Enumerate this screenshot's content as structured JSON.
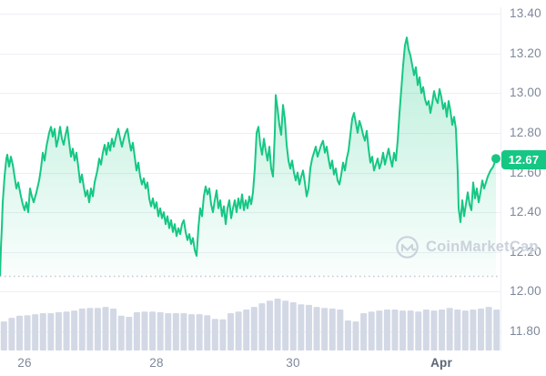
{
  "watermark": {
    "text": "CoinMarketCap",
    "logo_icon": "coinmarketcap-logo"
  },
  "chart_data": {
    "type": "area",
    "title": "",
    "current_price": "12.67",
    "legend": [],
    "y_axis": {
      "side": "right",
      "grid": true,
      "ticks": [
        "13.40",
        "13.20",
        "13.00",
        "12.80",
        "12.60",
        "12.40",
        "12.20",
        "12.00",
        "11.80"
      ],
      "range_top": 13.4,
      "range_bottom": 11.8
    },
    "x_axis": {
      "ticks": [
        {
          "label": "26",
          "t": 0.049,
          "bold": false
        },
        {
          "label": "28",
          "t": 0.313,
          "bold": false
        },
        {
          "label": "30",
          "t": 0.585,
          "bold": false
        },
        {
          "label": "Apr",
          "t": 0.882,
          "bold": true
        }
      ]
    },
    "series": [
      {
        "name": "price",
        "points": [
          [
            0,
            12.07
          ],
          [
            1,
            12.22
          ],
          [
            2,
            12.32
          ],
          [
            3,
            12.45
          ],
          [
            5,
            12.58
          ],
          [
            7,
            12.67
          ],
          [
            8,
            12.69
          ],
          [
            10,
            12.63
          ],
          [
            12,
            12.68
          ],
          [
            14,
            12.64
          ],
          [
            16,
            12.58
          ],
          [
            18,
            12.52
          ],
          [
            20,
            12.55
          ],
          [
            23,
            12.48
          ],
          [
            25,
            12.44
          ],
          [
            27,
            12.41
          ],
          [
            29,
            12.45
          ],
          [
            31,
            12.4
          ],
          [
            33,
            12.52
          ],
          [
            35,
            12.48
          ],
          [
            37,
            12.45
          ],
          [
            40,
            12.5
          ],
          [
            43,
            12.56
          ],
          [
            45,
            12.62
          ],
          [
            47,
            12.7
          ],
          [
            49,
            12.66
          ],
          [
            51,
            12.73
          ],
          [
            54,
            12.8
          ],
          [
            56,
            12.83
          ],
          [
            58,
            12.78
          ],
          [
            60,
            12.82
          ],
          [
            62,
            12.73
          ],
          [
            64,
            12.77
          ],
          [
            66,
            12.83
          ],
          [
            68,
            12.77
          ],
          [
            70,
            12.74
          ],
          [
            72,
            12.79
          ],
          [
            74,
            12.83
          ],
          [
            76,
            12.75
          ],
          [
            78,
            12.68
          ],
          [
            80,
            12.72
          ],
          [
            82,
            12.66
          ],
          [
            84,
            12.7
          ],
          [
            86,
            12.63
          ],
          [
            88,
            12.55
          ],
          [
            90,
            12.59
          ],
          [
            92,
            12.53
          ],
          [
            94,
            12.48
          ],
          [
            96,
            12.51
          ],
          [
            98,
            12.45
          ],
          [
            100,
            12.52
          ],
          [
            102,
            12.48
          ],
          [
            104,
            12.55
          ],
          [
            107,
            12.61
          ],
          [
            109,
            12.67
          ],
          [
            111,
            12.64
          ],
          [
            113,
            12.7
          ],
          [
            115,
            12.74
          ],
          [
            117,
            12.69
          ],
          [
            119,
            12.75
          ],
          [
            121,
            12.71
          ],
          [
            123,
            12.77
          ],
          [
            125,
            12.73
          ],
          [
            128,
            12.79
          ],
          [
            130,
            12.82
          ],
          [
            132,
            12.77
          ],
          [
            134,
            12.73
          ],
          [
            136,
            12.77
          ],
          [
            138,
            12.8
          ],
          [
            140,
            12.82
          ],
          [
            142,
            12.76
          ],
          [
            144,
            12.71
          ],
          [
            146,
            12.75
          ],
          [
            148,
            12.68
          ],
          [
            150,
            12.61
          ],
          [
            152,
            12.65
          ],
          [
            154,
            12.58
          ],
          [
            156,
            12.54
          ],
          [
            158,
            12.57
          ],
          [
            160,
            12.52
          ],
          [
            162,
            12.55
          ],
          [
            164,
            12.47
          ],
          [
            166,
            12.43
          ],
          [
            168,
            12.47
          ],
          [
            170,
            12.42
          ],
          [
            172,
            12.45
          ],
          [
            174,
            12.38
          ],
          [
            176,
            12.42
          ],
          [
            178,
            12.37
          ],
          [
            180,
            12.4
          ],
          [
            182,
            12.34
          ],
          [
            184,
            12.38
          ],
          [
            186,
            12.32
          ],
          [
            188,
            12.36
          ],
          [
            190,
            12.3
          ],
          [
            192,
            12.34
          ],
          [
            194,
            12.28
          ],
          [
            196,
            12.32
          ],
          [
            198,
            12.29
          ],
          [
            200,
            12.34
          ],
          [
            202,
            12.36
          ],
          [
            204,
            12.3
          ],
          [
            206,
            12.26
          ],
          [
            208,
            12.29
          ],
          [
            210,
            12.24
          ],
          [
            212,
            12.27
          ],
          [
            214,
            12.21
          ],
          [
            216,
            12.18
          ],
          [
            218,
            12.32
          ],
          [
            220,
            12.42
          ],
          [
            222,
            12.38
          ],
          [
            224,
            12.48
          ],
          [
            226,
            12.53
          ],
          [
            228,
            12.49
          ],
          [
            230,
            12.52
          ],
          [
            232,
            12.44
          ],
          [
            234,
            12.4
          ],
          [
            236,
            12.46
          ],
          [
            238,
            12.51
          ],
          [
            240,
            12.42
          ],
          [
            242,
            12.46
          ],
          [
            244,
            12.38
          ],
          [
            246,
            12.43
          ],
          [
            248,
            12.34
          ],
          [
            250,
            12.42
          ],
          [
            252,
            12.46
          ],
          [
            254,
            12.37
          ],
          [
            256,
            12.42
          ],
          [
            258,
            12.46
          ],
          [
            260,
            12.4
          ],
          [
            262,
            12.47
          ],
          [
            264,
            12.42
          ],
          [
            266,
            12.49
          ],
          [
            268,
            12.41
          ],
          [
            270,
            12.46
          ],
          [
            272,
            12.42
          ],
          [
            274,
            12.48
          ],
          [
            276,
            12.44
          ],
          [
            278,
            12.5
          ],
          [
            280,
            12.62
          ],
          [
            282,
            12.8
          ],
          [
            284,
            12.83
          ],
          [
            286,
            12.74
          ],
          [
            288,
            12.69
          ],
          [
            290,
            12.77
          ],
          [
            292,
            12.71
          ],
          [
            294,
            12.66
          ],
          [
            296,
            12.73
          ],
          [
            298,
            12.62
          ],
          [
            300,
            12.58
          ],
          [
            302,
            12.8
          ],
          [
            303,
            12.99
          ],
          [
            305,
            12.92
          ],
          [
            307,
            12.84
          ],
          [
            309,
            12.79
          ],
          [
            311,
            12.94
          ],
          [
            313,
            12.87
          ],
          [
            315,
            12.74
          ],
          [
            317,
            12.66
          ],
          [
            319,
            12.62
          ],
          [
            321,
            12.66
          ],
          [
            323,
            12.6
          ],
          [
            325,
            12.56
          ],
          [
            327,
            12.6
          ],
          [
            329,
            12.54
          ],
          [
            331,
            12.58
          ],
          [
            333,
            12.61
          ],
          [
            335,
            12.55
          ],
          [
            337,
            12.48
          ],
          [
            339,
            12.52
          ],
          [
            341,
            12.62
          ],
          [
            343,
            12.67
          ],
          [
            345,
            12.7
          ],
          [
            347,
            12.73
          ],
          [
            349,
            12.68
          ],
          [
            351,
            12.71
          ],
          [
            353,
            12.74
          ],
          [
            355,
            12.76
          ],
          [
            357,
            12.7
          ],
          [
            359,
            12.73
          ],
          [
            361,
            12.67
          ],
          [
            363,
            12.62
          ],
          [
            365,
            12.66
          ],
          [
            367,
            12.59
          ],
          [
            369,
            12.62
          ],
          [
            371,
            12.56
          ],
          [
            373,
            12.54
          ],
          [
            375,
            12.59
          ],
          [
            377,
            12.65
          ],
          [
            379,
            12.61
          ],
          [
            381,
            12.67
          ],
          [
            383,
            12.71
          ],
          [
            385,
            12.79
          ],
          [
            387,
            12.87
          ],
          [
            389,
            12.9
          ],
          [
            391,
            12.85
          ],
          [
            393,
            12.8
          ],
          [
            395,
            12.86
          ],
          [
            397,
            12.83
          ],
          [
            399,
            12.79
          ],
          [
            401,
            12.76
          ],
          [
            403,
            12.81
          ],
          [
            405,
            12.72
          ],
          [
            407,
            12.65
          ],
          [
            409,
            12.68
          ],
          [
            411,
            12.61
          ],
          [
            413,
            12.64
          ],
          [
            415,
            12.67
          ],
          [
            417,
            12.62
          ],
          [
            419,
            12.65
          ],
          [
            421,
            12.7
          ],
          [
            423,
            12.64
          ],
          [
            425,
            12.68
          ],
          [
            427,
            12.72
          ],
          [
            429,
            12.67
          ],
          [
            431,
            12.63
          ],
          [
            433,
            12.7
          ],
          [
            435,
            12.66
          ],
          [
            437,
            12.76
          ],
          [
            439,
            12.9
          ],
          [
            441,
            13.02
          ],
          [
            443,
            13.14
          ],
          [
            445,
            13.24
          ],
          [
            447,
            13.28
          ],
          [
            449,
            13.22
          ],
          [
            451,
            13.19
          ],
          [
            453,
            13.14
          ],
          [
            455,
            13.09
          ],
          [
            457,
            13.13
          ],
          [
            459,
            13.04
          ],
          [
            461,
            13.08
          ],
          [
            463,
            13.0
          ],
          [
            465,
            13.03
          ],
          [
            467,
            12.97
          ],
          [
            469,
            12.94
          ],
          [
            471,
            12.96
          ],
          [
            473,
            12.9
          ],
          [
            475,
            12.95
          ],
          [
            477,
            13.01
          ],
          [
            479,
            12.97
          ],
          [
            481,
            12.95
          ],
          [
            483,
            13.02
          ],
          [
            485,
            12.98
          ],
          [
            487,
            12.92
          ],
          [
            489,
            12.95
          ],
          [
            491,
            12.88
          ],
          [
            493,
            12.96
          ],
          [
            495,
            12.91
          ],
          [
            497,
            12.84
          ],
          [
            499,
            12.88
          ],
          [
            501,
            12.82
          ],
          [
            503,
            12.6
          ],
          [
            504,
            12.42
          ],
          [
            506,
            12.35
          ],
          [
            508,
            12.46
          ],
          [
            510,
            12.38
          ],
          [
            512,
            12.44
          ],
          [
            514,
            12.5
          ],
          [
            516,
            12.44
          ],
          [
            518,
            12.41
          ],
          [
            520,
            12.55
          ],
          [
            522,
            12.47
          ],
          [
            524,
            12.52
          ],
          [
            526,
            12.45
          ],
          [
            528,
            12.5
          ],
          [
            530,
            12.56
          ],
          [
            532,
            12.52
          ],
          [
            534,
            12.55
          ],
          [
            536,
            12.58
          ],
          [
            539,
            12.61
          ],
          [
            542,
            12.63
          ],
          [
            545,
            12.67
          ]
        ]
      }
    ],
    "volume": {
      "name": "volume",
      "relative_heights": [
        0.56,
        0.63,
        0.67,
        0.68,
        0.7,
        0.72,
        0.72,
        0.74,
        0.75,
        0.77,
        0.81,
        0.82,
        0.82,
        0.84,
        0.81,
        0.67,
        0.65,
        0.74,
        0.75,
        0.75,
        0.74,
        0.72,
        0.72,
        0.72,
        0.7,
        0.7,
        0.68,
        0.61,
        0.6,
        0.72,
        0.75,
        0.79,
        0.84,
        0.91,
        0.96,
        1.0,
        0.96,
        0.93,
        0.89,
        0.88,
        0.84,
        0.82,
        0.81,
        0.79,
        0.58,
        0.56,
        0.72,
        0.75,
        0.77,
        0.79,
        0.79,
        0.77,
        0.77,
        0.75,
        0.79,
        0.77,
        0.79,
        0.82,
        0.79,
        0.77,
        0.79,
        0.81,
        0.84,
        0.79
      ]
    },
    "colors": {
      "line": "#16C784",
      "fill": "#16C784",
      "badge": "#16C784",
      "volume_bar": "#D3D8E5",
      "grid": "#EDF0F4",
      "baseline_dots": "#C3CAD5",
      "tick_label": "#7E8799",
      "tick_label_bold": "#5B6575",
      "watermark": "#CBD2DC"
    }
  }
}
